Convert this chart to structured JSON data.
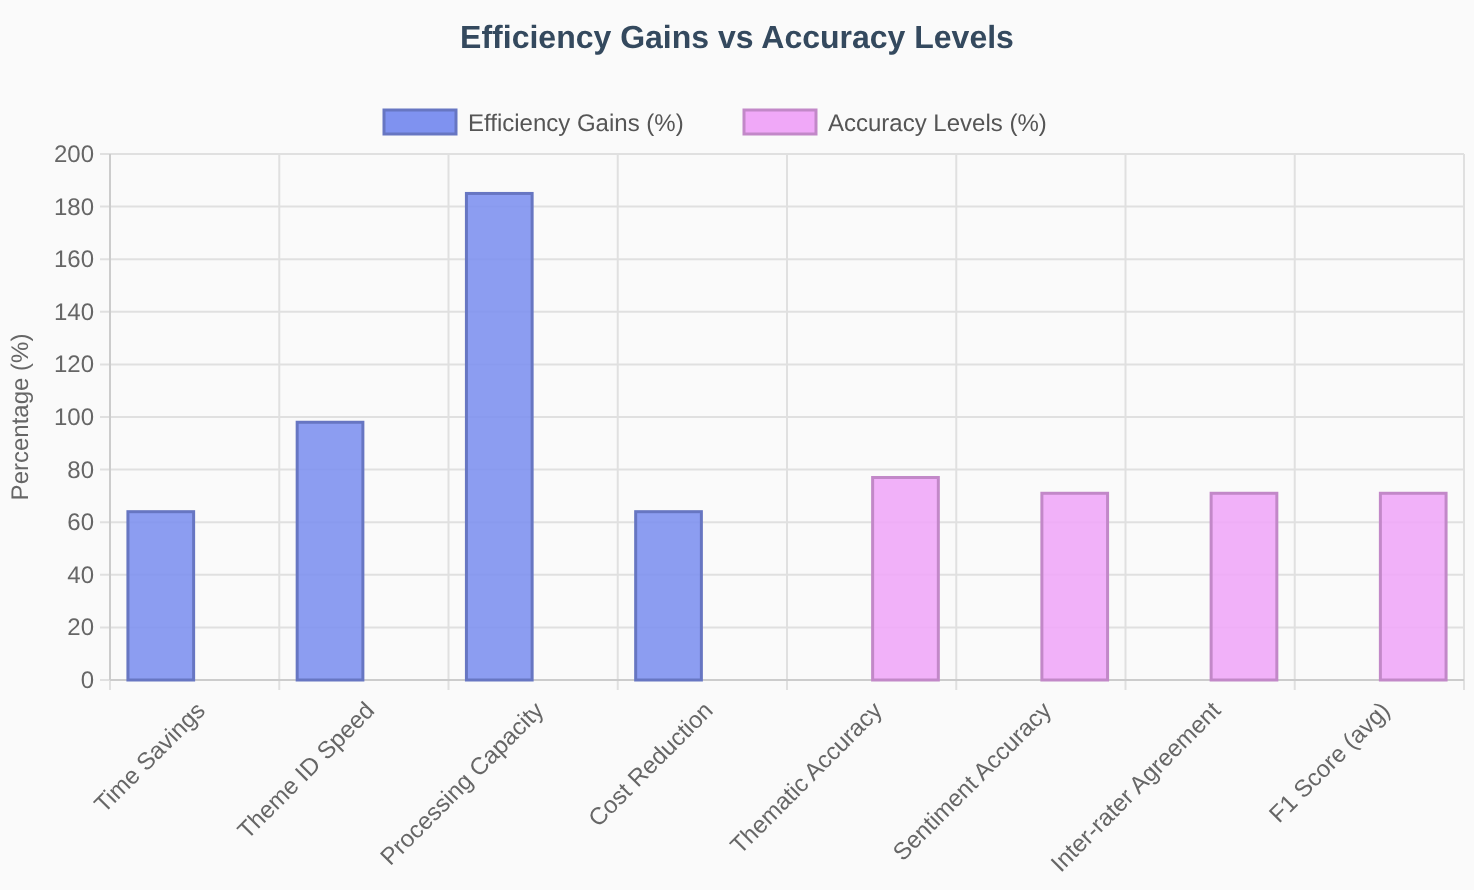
{
  "chart_data": {
    "type": "bar",
    "title": "Efficiency Gains vs Accuracy Levels",
    "ylabel": "Percentage (%)",
    "categories": [
      "Time Savings",
      "Theme ID Speed",
      "Processing Capacity",
      "Cost Reduction",
      "Thematic Accuracy",
      "Sentiment Accuracy",
      "Inter-rater Agreement",
      "F1 Score (avg)"
    ],
    "series": [
      {
        "name": "Efficiency Gains (%)",
        "color": "#7f92f0",
        "values": [
          64,
          98,
          185,
          64,
          null,
          null,
          null,
          null
        ]
      },
      {
        "name": "Accuracy Levels (%)",
        "color": "#f0a8f8",
        "values": [
          null,
          null,
          null,
          null,
          77,
          71,
          71,
          71
        ]
      }
    ],
    "ylim": [
      0,
      200
    ],
    "yticks": [
      0,
      20,
      40,
      60,
      80,
      100,
      120,
      140,
      160,
      180,
      200
    ],
    "grid": true,
    "legend": "top"
  }
}
